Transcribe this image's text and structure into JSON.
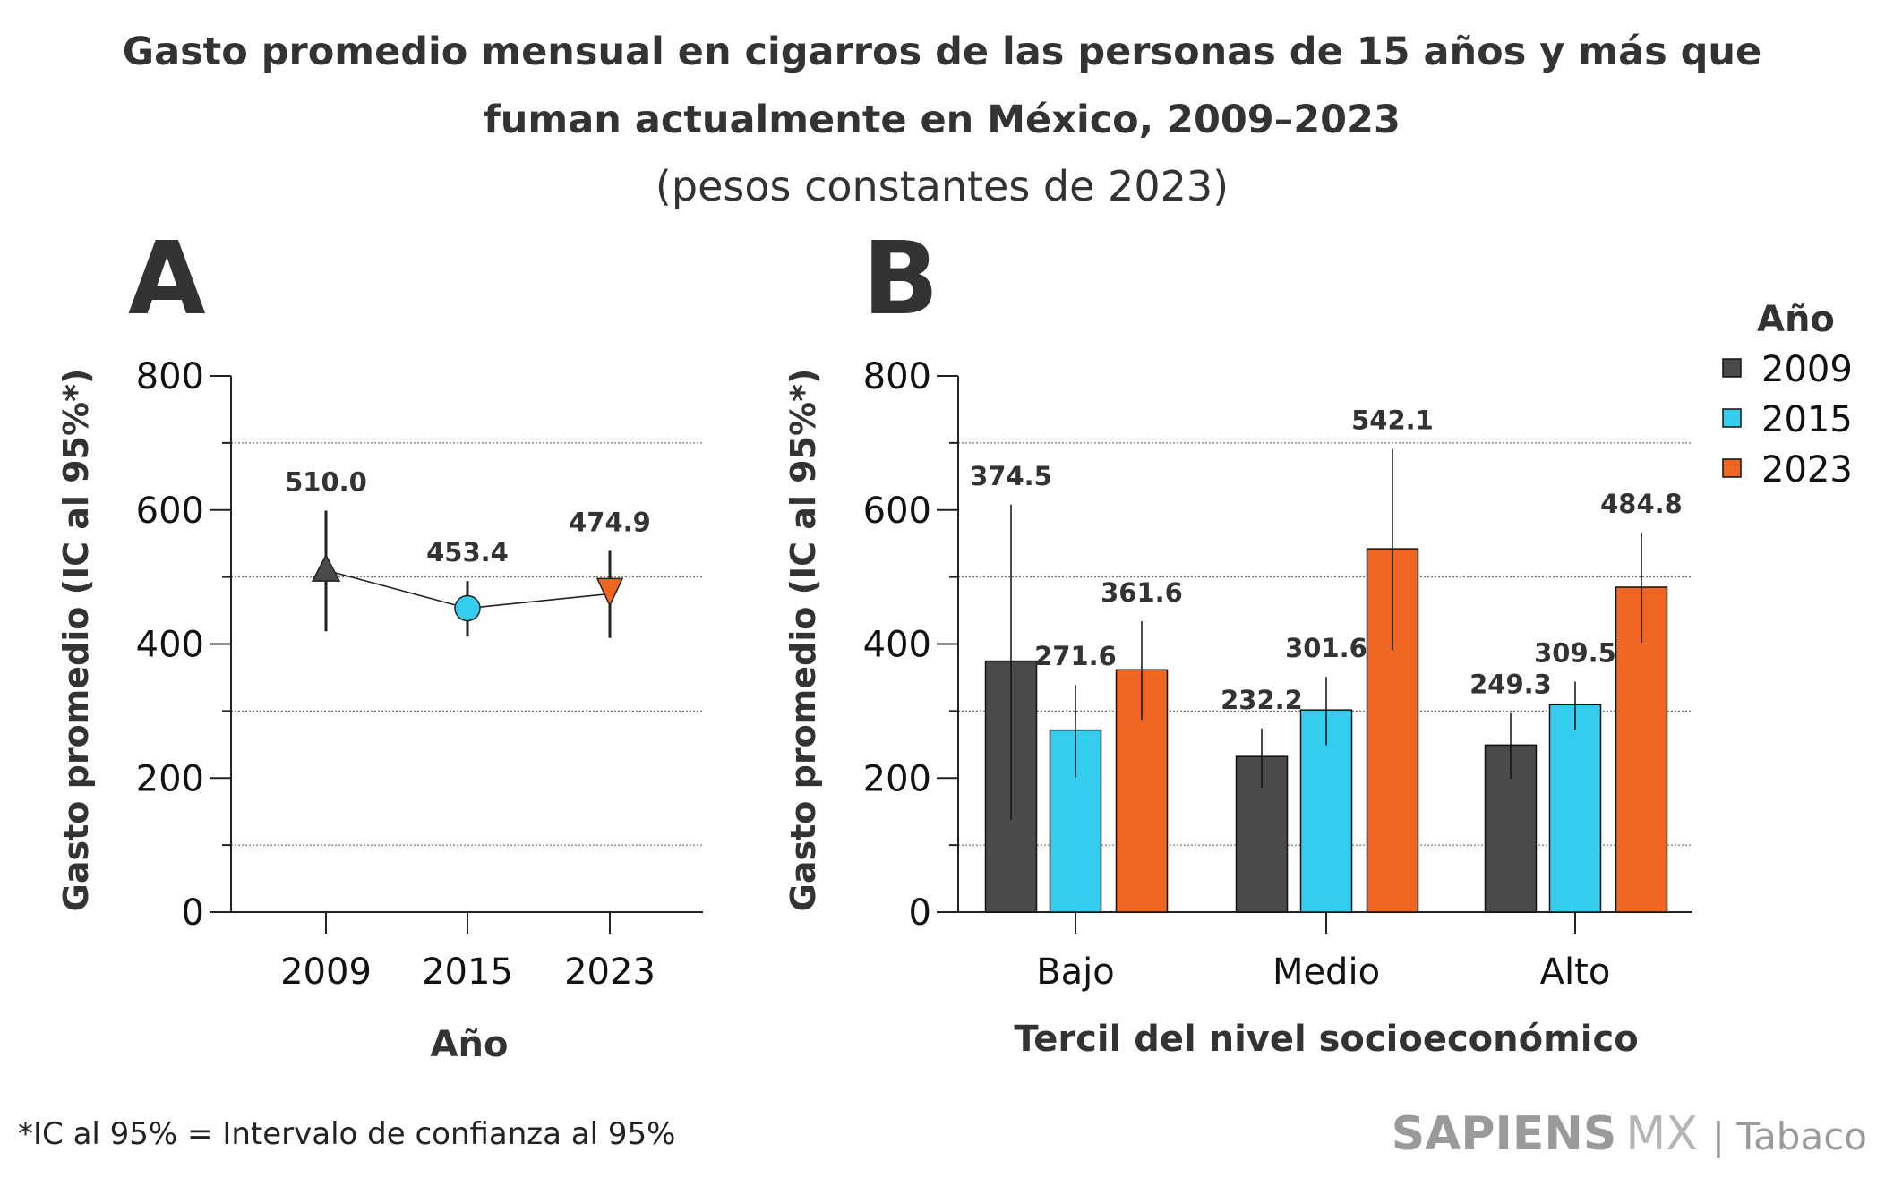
{
  "title_line1": "Gasto promedio mensual en cigarros de las personas de 15 años  y más que",
  "title_line2": "fuman actualmente en México, 2009–2023",
  "subtitle": "(pesos constantes de 2023)",
  "footnote": "*IC al 95% = Intervalo de confianza al 95%",
  "brand": {
    "name": "SAPIENS",
    "suffix": "MX",
    "section": "| Tabaco"
  },
  "colors": {
    "2009": "#4a4a4a",
    "2015": "#35cdee",
    "2023": "#ee6622"
  },
  "chart_data": [
    {
      "type": "line",
      "panel": "A",
      "xlabel": "Año",
      "ylabel": "Gasto promedio (IC al 95%*)",
      "ylim": [
        0,
        800
      ],
      "yticks": [
        "0",
        "200",
        "400",
        "600",
        "800"
      ],
      "grid": "dotted horizontal at 100, 300, 500, 700",
      "categories": [
        "2009",
        "2015",
        "2023"
      ],
      "values": [
        510.0,
        453.4,
        474.9
      ],
      "labels": [
        "510.0",
        "453.4",
        "474.9"
      ],
      "ci_low": [
        419,
        411,
        409
      ],
      "ci_high": [
        599,
        494,
        539
      ],
      "markers": [
        "triangle-up",
        "circle",
        "triangle-down"
      ]
    },
    {
      "type": "bar",
      "panel": "B",
      "xlabel": "Tercil del nivel socioeconómico",
      "ylabel": "Gasto promedio (IC al 95%*)",
      "ylim": [
        0,
        800
      ],
      "yticks": [
        "0",
        "200",
        "400",
        "600",
        "800"
      ],
      "grid": "dotted horizontal at 100, 300, 500, 700",
      "legend_title": "Año",
      "legend_position": "right",
      "categories": [
        "Bajo",
        "Medio",
        "Alto"
      ],
      "series": [
        {
          "name": "2009",
          "values": [
            374.5,
            232.2,
            249.3
          ],
          "labels": [
            "374.5",
            "232.2",
            "249.3"
          ],
          "ci_low": [
            138,
            186,
            199
          ],
          "ci_high": [
            608,
            274,
            297
          ]
        },
        {
          "name": "2015",
          "values": [
            271.6,
            301.6,
            309.5
          ],
          "labels": [
            "271.6",
            "301.6",
            "309.5"
          ],
          "ci_low": [
            201,
            249,
            271
          ],
          "ci_high": [
            339,
            351,
            344
          ]
        },
        {
          "name": "2023",
          "values": [
            361.6,
            542.1,
            484.8
          ],
          "labels": [
            "361.6",
            "542.1",
            "484.8"
          ],
          "ci_low": [
            287,
            391,
            402
          ],
          "ci_high": [
            434,
            691,
            566
          ]
        }
      ]
    }
  ]
}
